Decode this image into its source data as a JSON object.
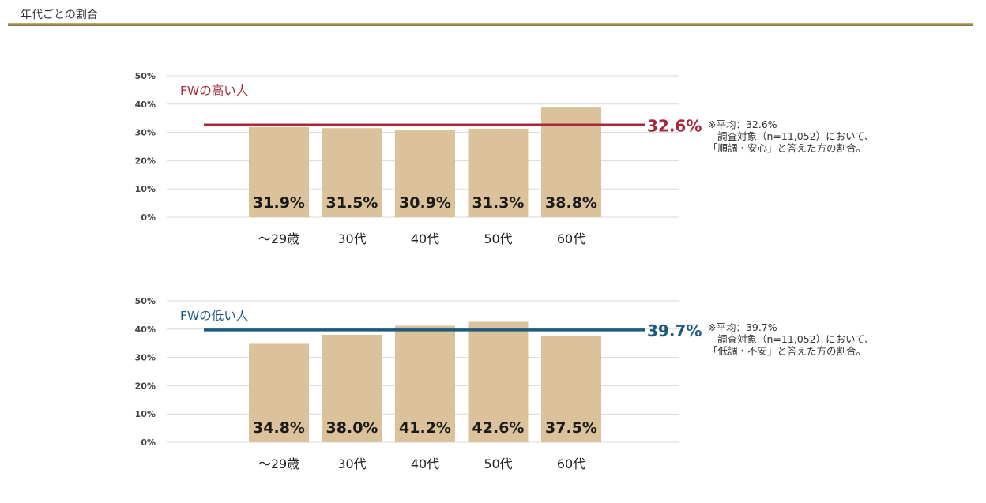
{
  "page": {
    "title": "年代ごとの割合"
  },
  "colors": {
    "bar": "#dcc29a",
    "grid": "#d9d9d9",
    "high_line": "#a8283b",
    "low_line": "#1e5a7e",
    "title_rule": "#a88b52"
  },
  "chart_data": [
    {
      "type": "bar",
      "title": "FWの高い人",
      "categories": [
        "～29歳",
        "30代",
        "40代",
        "50代",
        "60代"
      ],
      "values": [
        31.9,
        31.5,
        30.9,
        31.3,
        38.8
      ],
      "value_labels": [
        "31.9%",
        "31.5%",
        "30.9%",
        "31.3%",
        "38.8%"
      ],
      "yticks": [
        "50%",
        "40%",
        "30%",
        "20%",
        "10%",
        "0%"
      ],
      "ylim": [
        0,
        50
      ],
      "average": 32.6,
      "average_label": "32.6%",
      "average_color": "#a8283b",
      "grid": true,
      "note": [
        "※平均：32.6%",
        "調査対象（n=11,052）において、",
        "「順調・安心」と答えた方の割合。"
      ]
    },
    {
      "type": "bar",
      "title": "FWの低い人",
      "categories": [
        "～29歳",
        "30代",
        "40代",
        "50代",
        "60代"
      ],
      "values": [
        34.8,
        38.0,
        41.2,
        42.6,
        37.5
      ],
      "value_labels": [
        "34.8%",
        "38.0%",
        "41.2%",
        "42.6%",
        "37.5%"
      ],
      "yticks": [
        "50%",
        "40%",
        "30%",
        "20%",
        "10%",
        "0%"
      ],
      "ylim": [
        0,
        50
      ],
      "average": 39.7,
      "average_label": "39.7%",
      "average_color": "#1e5a7e",
      "grid": true,
      "note": [
        "※平均：39.7%",
        "調査対象（n=11,052）において、",
        "「低調・不安」と答えた方の割合。"
      ]
    }
  ]
}
